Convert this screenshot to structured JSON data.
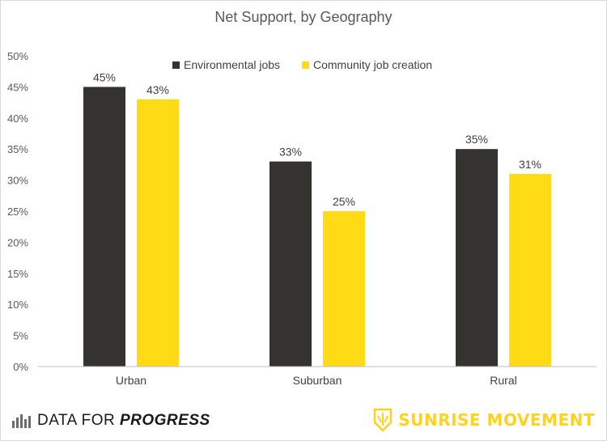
{
  "chart_data": {
    "type": "bar",
    "title": "Net Support, by Geography",
    "categories": [
      "Urban",
      "Suburban",
      "Rural"
    ],
    "series": [
      {
        "name": "Environmental jobs",
        "values": [
          45,
          33,
          35
        ],
        "color": "#34332f"
      },
      {
        "name": "Community job creation",
        "values": [
          43,
          25,
          31
        ],
        "color": "#fedb14"
      }
    ],
    "data_labels": [
      [
        "45%",
        "33%",
        "35%"
      ],
      [
        "43%",
        "25%",
        "31%"
      ]
    ],
    "ylim": [
      0,
      50
    ],
    "yticks": [
      0,
      5,
      10,
      15,
      20,
      25,
      30,
      35,
      40,
      45,
      50
    ],
    "y_tick_labels": [
      "0%",
      "5%",
      "10%",
      "15%",
      "20%",
      "25%",
      "30%",
      "35%",
      "40%",
      "45%",
      "50%"
    ],
    "xlabel": "",
    "ylabel": "",
    "grid": false,
    "legend_position": "top-center"
  },
  "logos": {
    "left_regular": "DATA FOR ",
    "left_bold": "PROGRESS",
    "right": "SUNRISE MOVEMENT"
  }
}
